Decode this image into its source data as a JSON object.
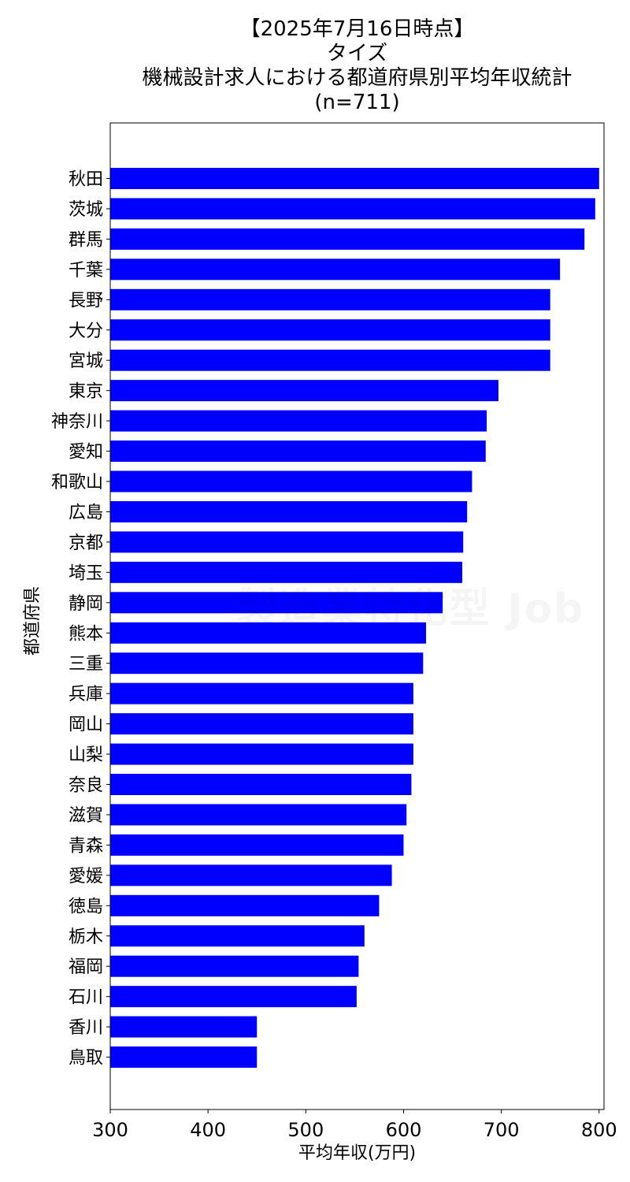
{
  "title_lines": [
    "【2025年7月16日時点】",
    "タイズ",
    "機械設計求人における都道府県別平均年収統計",
    "(n=711)"
  ],
  "watermark": "製造業特化型 Job",
  "chart_data": {
    "type": "bar",
    "orientation": "horizontal",
    "title": "【2025年7月16日時点】 タイズ 機械設計求人における都道府県別平均年収統計 (n=711)",
    "xlabel": "平均年収(万円)",
    "ylabel": "都道府県",
    "xlim": [
      300,
      805
    ],
    "xticks": [
      300,
      400,
      500,
      600,
      700,
      800
    ],
    "bar_color": "#0000ff",
    "grid": false,
    "categories": [
      "秋田",
      "茨城",
      "群馬",
      "千葉",
      "長野",
      "大分",
      "宮城",
      "東京",
      "神奈川",
      "愛知",
      "和歌山",
      "広島",
      "京都",
      "埼玉",
      "静岡",
      "熊本",
      "三重",
      "兵庫",
      "岡山",
      "山梨",
      "奈良",
      "滋賀",
      "青森",
      "愛媛",
      "徳島",
      "栃木",
      "福岡",
      "石川",
      "香川",
      "鳥取"
    ],
    "values": [
      800,
      796,
      785,
      760,
      750,
      750,
      750,
      697,
      685,
      684,
      670,
      665,
      661,
      660,
      640,
      623,
      620,
      610,
      610,
      610,
      608,
      603,
      600,
      588,
      575,
      560,
      554,
      552,
      450,
      450
    ]
  }
}
